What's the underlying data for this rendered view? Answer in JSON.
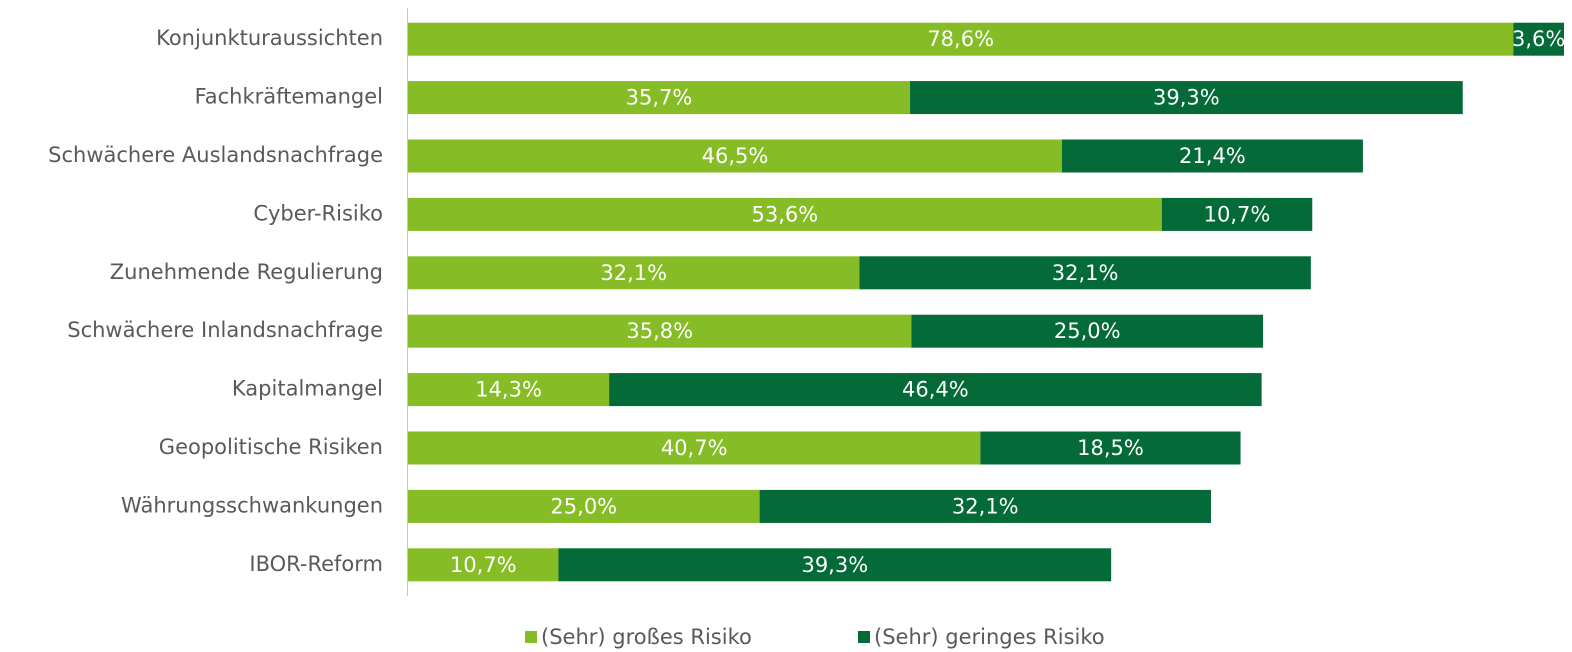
{
  "chart_data": {
    "type": "stacked_barh",
    "categories": [
      "Konjunkturaussichten",
      "Fachkräftemangel",
      "Schwächere Auslandsnachfrage",
      "Cyber-Risiko",
      "Zunehmende Regulierung",
      "Schwächere Inlandsnachfrage",
      "Kapitalmangel",
      "Geopolitische Risiken",
      "Währungsschwankungen",
      "IBOR-Reform"
    ],
    "series": [
      {
        "name": "(Sehr) großes Risiko",
        "color": "#86bc25",
        "values": [
          78.6,
          35.7,
          46.5,
          53.6,
          32.1,
          35.8,
          14.3,
          40.7,
          25.0,
          10.7
        ],
        "value_labels": [
          "78,6%",
          "35,7%",
          "46,5%",
          "53,6%",
          "32,1%",
          "35,8%",
          "14,3%",
          "40,7%",
          "25,0%",
          "10,7%"
        ]
      },
      {
        "name": "(Sehr) geringes Risiko",
        "color": "#046a38",
        "values": [
          3.6,
          39.3,
          21.4,
          10.7,
          32.1,
          25.0,
          46.4,
          18.5,
          32.1,
          39.3
        ],
        "value_labels": [
          "3,6%",
          "39,3%",
          "21,4%",
          "10,7%",
          "32,1%",
          "25,0%",
          "46,4%",
          "18,5%",
          "32,1%",
          "39,3%"
        ]
      }
    ],
    "xlim": [
      0,
      82.2
    ],
    "legend": "bottom"
  }
}
